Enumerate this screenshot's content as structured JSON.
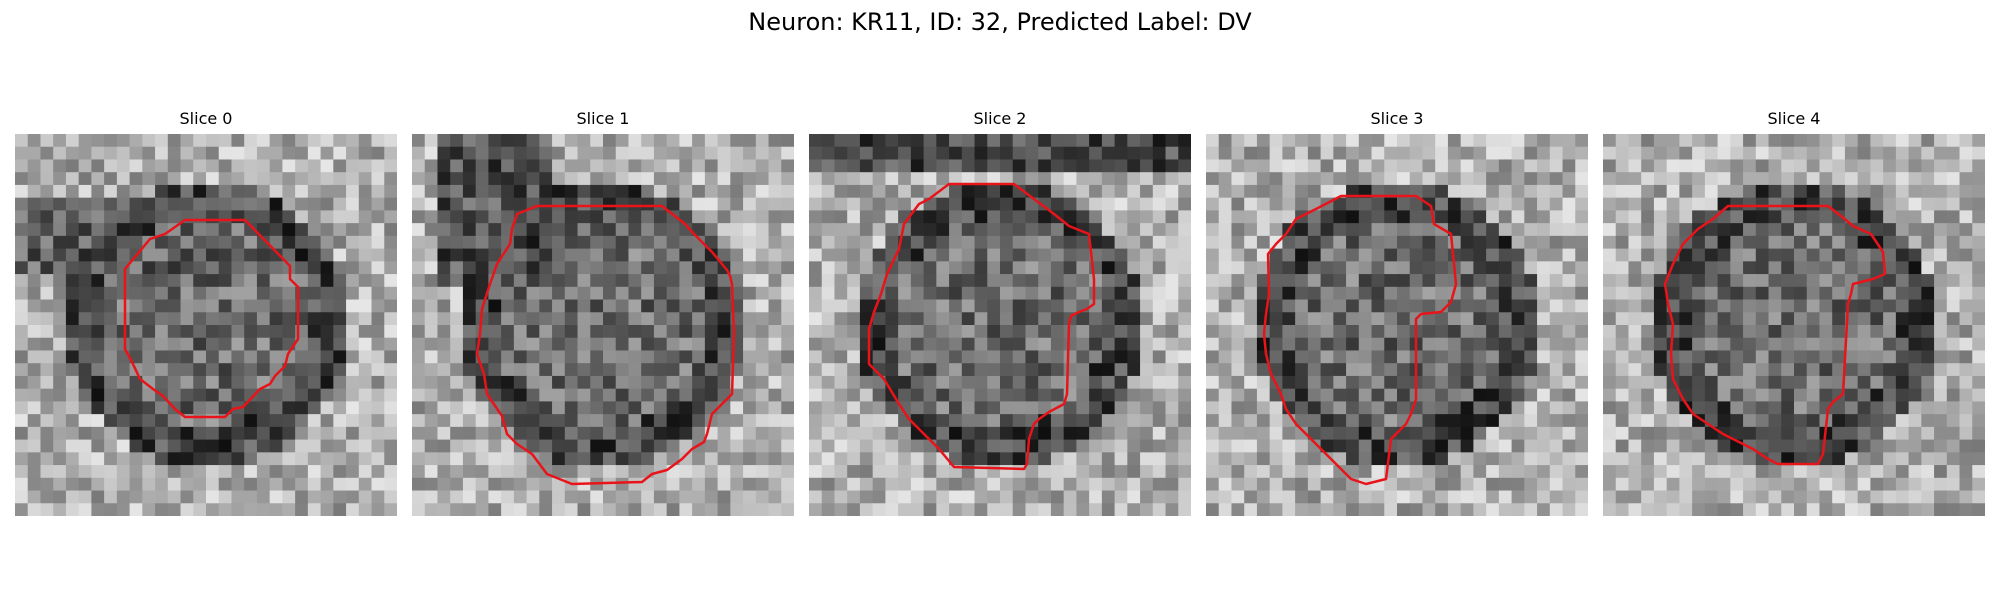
{
  "title": "Neuron: KR11, ID: 32, Predicted Label: DV",
  "outline_color": "#e8141a",
  "panels": [
    {
      "label": "Slice 0"
    },
    {
      "label": "Slice 1"
    },
    {
      "label": "Slice 2"
    },
    {
      "label": "Slice 3"
    },
    {
      "label": "Slice 4"
    }
  ]
}
